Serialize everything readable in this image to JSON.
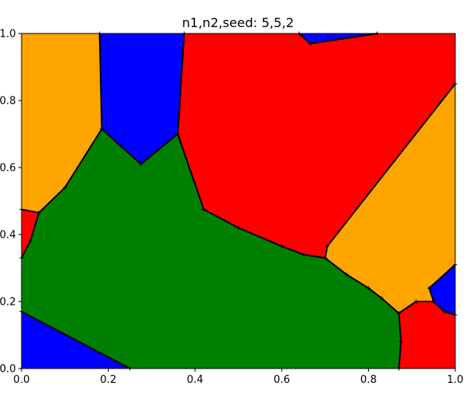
{
  "chart_data": {
    "type": "area",
    "title": "n1,n2,seed: 5,5,2",
    "xlabel": "",
    "ylabel": "",
    "xlim": [
      0,
      1
    ],
    "ylim": [
      0,
      1
    ],
    "grid": false,
    "x_ticks": [
      "0.0",
      "0.2",
      "0.4",
      "0.6",
      "0.8",
      "1.0"
    ],
    "y_ticks": [
      "0.0",
      "0.2",
      "0.4",
      "0.6",
      "0.8",
      "1.0"
    ],
    "regions": [
      {
        "color": "#0000ff",
        "points": [
          [
            0.0,
            0.0
          ],
          [
            0.0,
            0.17
          ],
          [
            0.25,
            0.0
          ]
        ]
      },
      {
        "color": "#008000",
        "points": [
          [
            0.0,
            0.17
          ],
          [
            0.0,
            0.33
          ],
          [
            0.02,
            0.38
          ],
          [
            0.04,
            0.465
          ],
          [
            0.1,
            0.54
          ],
          [
            0.185,
            0.715
          ],
          [
            0.275,
            0.61
          ],
          [
            0.36,
            0.7
          ],
          [
            0.42,
            0.475
          ],
          [
            0.5,
            0.42
          ],
          [
            0.6,
            0.365
          ],
          [
            0.65,
            0.34
          ],
          [
            0.7,
            0.33
          ],
          [
            0.75,
            0.28
          ],
          [
            0.8,
            0.24
          ],
          [
            0.83,
            0.21
          ],
          [
            0.87,
            0.165
          ],
          [
            0.875,
            0.08
          ],
          [
            0.87,
            0.0
          ],
          [
            0.25,
            0.0
          ]
        ]
      },
      {
        "color": "#ff0000",
        "points": [
          [
            0.0,
            0.33
          ],
          [
            0.0,
            0.475
          ],
          [
            0.04,
            0.465
          ],
          [
            0.02,
            0.38
          ]
        ]
      },
      {
        "color": "#ffa500",
        "points": [
          [
            0.0,
            0.475
          ],
          [
            0.04,
            0.465
          ],
          [
            0.1,
            0.54
          ],
          [
            0.185,
            0.715
          ],
          [
            0.18,
            1.0
          ],
          [
            0.0,
            1.0
          ]
        ]
      },
      {
        "color": "#0000ff",
        "points": [
          [
            0.18,
            1.0
          ],
          [
            0.185,
            0.715
          ],
          [
            0.275,
            0.61
          ],
          [
            0.36,
            0.7
          ],
          [
            0.375,
            1.0
          ]
        ]
      },
      {
        "color": "#ff0000",
        "points": [
          [
            0.375,
            1.0
          ],
          [
            0.36,
            0.7
          ],
          [
            0.42,
            0.475
          ],
          [
            0.5,
            0.42
          ],
          [
            0.6,
            0.365
          ],
          [
            0.65,
            0.34
          ],
          [
            0.7,
            0.33
          ],
          [
            0.705,
            0.365
          ],
          [
            1.0,
            0.85
          ],
          [
            1.0,
            1.0
          ],
          [
            0.82,
            1.0
          ],
          [
            0.665,
            0.97
          ],
          [
            0.64,
            1.0
          ]
        ]
      },
      {
        "color": "#0000ff",
        "points": [
          [
            0.64,
            1.0
          ],
          [
            0.665,
            0.97
          ],
          [
            0.82,
            1.0
          ]
        ]
      },
      {
        "color": "#ffa500",
        "points": [
          [
            0.7,
            0.33
          ],
          [
            0.705,
            0.365
          ],
          [
            1.0,
            0.85
          ],
          [
            1.0,
            0.31
          ],
          [
            0.94,
            0.24
          ],
          [
            0.95,
            0.2
          ],
          [
            0.91,
            0.2
          ],
          [
            0.87,
            0.165
          ],
          [
            0.83,
            0.21
          ],
          [
            0.8,
            0.24
          ],
          [
            0.75,
            0.28
          ]
        ]
      },
      {
        "color": "#0000ff",
        "points": [
          [
            1.0,
            0.31
          ],
          [
            0.94,
            0.24
          ],
          [
            0.95,
            0.2
          ],
          [
            0.975,
            0.17
          ],
          [
            1.0,
            0.16
          ]
        ]
      },
      {
        "color": "#ff0000",
        "points": [
          [
            0.87,
            0.0
          ],
          [
            0.875,
            0.08
          ],
          [
            0.87,
            0.165
          ],
          [
            0.91,
            0.2
          ],
          [
            0.95,
            0.2
          ],
          [
            0.975,
            0.17
          ],
          [
            1.0,
            0.16
          ],
          [
            1.0,
            0.0
          ]
        ]
      }
    ],
    "edges": [
      [
        [
          0.0,
          0.17
        ],
        [
          0.25,
          0.0
        ]
      ],
      [
        [
          0.0,
          0.33
        ],
        [
          0.02,
          0.38
        ],
        [
          0.04,
          0.465
        ],
        [
          0.0,
          0.475
        ]
      ],
      [
        [
          0.04,
          0.465
        ],
        [
          0.1,
          0.54
        ],
        [
          0.185,
          0.715
        ],
        [
          0.18,
          1.0
        ]
      ],
      [
        [
          0.185,
          0.715
        ],
        [
          0.275,
          0.61
        ],
        [
          0.36,
          0.7
        ],
        [
          0.375,
          1.0
        ]
      ],
      [
        [
          0.36,
          0.7
        ],
        [
          0.42,
          0.475
        ],
        [
          0.5,
          0.42
        ],
        [
          0.6,
          0.365
        ],
        [
          0.65,
          0.34
        ],
        [
          0.7,
          0.33
        ],
        [
          0.705,
          0.365
        ],
        [
          1.0,
          0.85
        ]
      ],
      [
        [
          0.64,
          1.0
        ],
        [
          0.665,
          0.97
        ],
        [
          0.82,
          1.0
        ]
      ],
      [
        [
          0.7,
          0.33
        ],
        [
          0.75,
          0.28
        ],
        [
          0.8,
          0.24
        ],
        [
          0.83,
          0.21
        ],
        [
          0.87,
          0.165
        ],
        [
          0.875,
          0.08
        ],
        [
          0.87,
          0.0
        ]
      ],
      [
        [
          0.87,
          0.165
        ],
        [
          0.91,
          0.2
        ],
        [
          0.95,
          0.2
        ],
        [
          0.975,
          0.17
        ],
        [
          1.0,
          0.16
        ]
      ],
      [
        [
          0.95,
          0.2
        ],
        [
          0.94,
          0.24
        ],
        [
          1.0,
          0.31
        ]
      ]
    ]
  }
}
